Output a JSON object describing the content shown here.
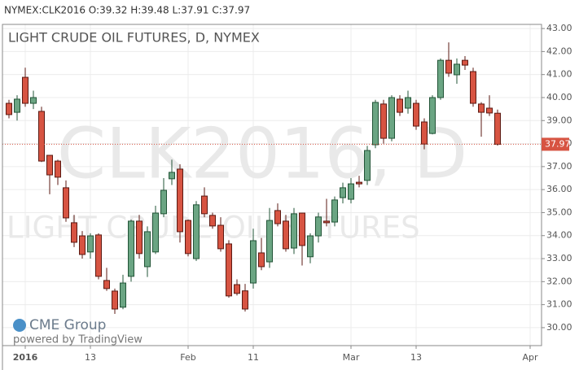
{
  "header": "NYMEX:CLK2016 O:39.32 H:39.48 L:37.91 C:37.97",
  "chart_data": {
    "type": "candlestick",
    "title": "LIGHT CRUDE OIL FUTURES, D, NYMEX",
    "watermark": "CLK2016, D",
    "watermark_subtitle": "LIGHT CRUDE OIL FUTURES",
    "branding": [
      "CME Group",
      "powered by TradingView"
    ],
    "up_color": "#6ba583",
    "down_color": "#d75442",
    "grid": true,
    "xlim": [
      -0.8,
      65.4
    ],
    "xticks": [
      {
        "value": 2,
        "label": "2016"
      },
      {
        "value": 10,
        "label": "13"
      },
      {
        "value": 22,
        "label": "Feb"
      },
      {
        "value": 30,
        "label": "11"
      },
      {
        "value": 42,
        "label": "Mar"
      },
      {
        "value": 50,
        "label": "13"
      },
      {
        "value": 64,
        "label": "Apr"
      }
    ],
    "ylim": [
      29.22,
      43.18
    ],
    "yticks": [
      {
        "value": 30,
        "label": "30.00"
      },
      {
        "value": 31,
        "label": "31.00"
      },
      {
        "value": 32,
        "label": "32.00"
      },
      {
        "value": 33,
        "label": "33.00"
      },
      {
        "value": 34,
        "label": "34.00"
      },
      {
        "value": 35,
        "label": "35.00"
      },
      {
        "value": 36,
        "label": "36.00"
      },
      {
        "value": 37,
        "label": "37.00"
      },
      {
        "value": 38,
        "label": "38.00"
      },
      {
        "value": 39,
        "label": "39.00"
      },
      {
        "value": 40,
        "label": "40.00"
      },
      {
        "value": 41,
        "label": "41.00"
      },
      {
        "value": 42,
        "label": "42.00"
      },
      {
        "value": 43,
        "label": "43.00"
      }
    ],
    "last_price": 37.97,
    "open": [
      39.75,
      39.36,
      40.88,
      39.75,
      39.4,
      37.49,
      37.24,
      36.08,
      34.56,
      33.99,
      33.29,
      34.03,
      32.05,
      31.59,
      30.89,
      32.23,
      34.63,
      32.65,
      33.29,
      34.95,
      36.47,
      36.89,
      34.66,
      33.0,
      35.72,
      34.88,
      34.45,
      33.64,
      31.87,
      31.6,
      31.94,
      33.25,
      32.86,
      35.09,
      34.63,
      33.46,
      34.98,
      33.08,
      33.99,
      34.63,
      34.59,
      35.65,
      35.58,
      36.32,
      36.4,
      37.95,
      39.72,
      38.23,
      39.93,
      39.54,
      39.75,
      38.94,
      38.44,
      40.0,
      41.62,
      40.99,
      41.62,
      41.13,
      39.72,
      39.54,
      39.32
    ],
    "high": [
      39.9,
      40.1,
      41.3,
      40.3,
      39.6,
      37.5,
      37.3,
      36.4,
      34.9,
      34.2,
      34.1,
      34.1,
      32.6,
      31.7,
      32.3,
      34.7,
      34.9,
      34.4,
      35.3,
      36.5,
      37.3,
      37.1,
      34.7,
      35.5,
      36.1,
      35.0,
      34.8,
      33.8,
      32.1,
      31.9,
      34.3,
      33.9,
      35.2,
      35.4,
      34.9,
      35.2,
      35.0,
      34.1,
      35.0,
      35.6,
      35.7,
      36.3,
      36.5,
      36.6,
      37.9,
      39.9,
      39.9,
      40.1,
      40.1,
      40.3,
      39.9,
      39.1,
      40.1,
      41.7,
      42.4,
      41.7,
      41.8,
      41.3,
      39.8,
      40.1,
      39.48
    ],
    "low": [
      39.1,
      39.0,
      39.6,
      39.5,
      37.2,
      35.8,
      36.2,
      34.6,
      33.5,
      33.0,
      33.0,
      32.1,
      31.6,
      30.6,
      30.8,
      32.0,
      33.0,
      32.2,
      33.2,
      34.8,
      36.2,
      33.7,
      33.1,
      32.9,
      34.8,
      34.3,
      33.3,
      31.3,
      31.4,
      30.7,
      31.7,
      32.5,
      32.6,
      34.4,
      33.3,
      33.2,
      32.7,
      32.8,
      33.7,
      34.4,
      34.4,
      35.4,
      35.4,
      36.1,
      36.2,
      37.8,
      38.0,
      38.1,
      39.2,
      39.3,
      38.6,
      37.75,
      38.4,
      39.9,
      40.9,
      40.6,
      41.2,
      39.6,
      38.3,
      39.2,
      37.91
    ],
    "close": [
      39.26,
      39.93,
      39.75,
      40.0,
      37.24,
      36.64,
      36.54,
      34.77,
      33.71,
      33.18,
      33.99,
      32.23,
      31.7,
      30.81,
      31.94,
      34.63,
      33.22,
      34.17,
      34.98,
      35.97,
      36.75,
      34.17,
      33.22,
      35.34,
      34.95,
      34.42,
      33.43,
      31.38,
      31.49,
      30.81,
      33.78,
      32.65,
      34.66,
      34.52,
      33.43,
      34.95,
      33.57,
      33.99,
      34.81,
      34.56,
      35.55,
      36.08,
      36.25,
      36.25,
      37.7,
      39.79,
      38.23,
      40.0,
      39.36,
      40.0,
      38.76,
      37.98,
      40.0,
      41.62,
      41.06,
      41.45,
      41.41,
      39.75,
      39.36,
      39.33,
      37.97
    ]
  }
}
